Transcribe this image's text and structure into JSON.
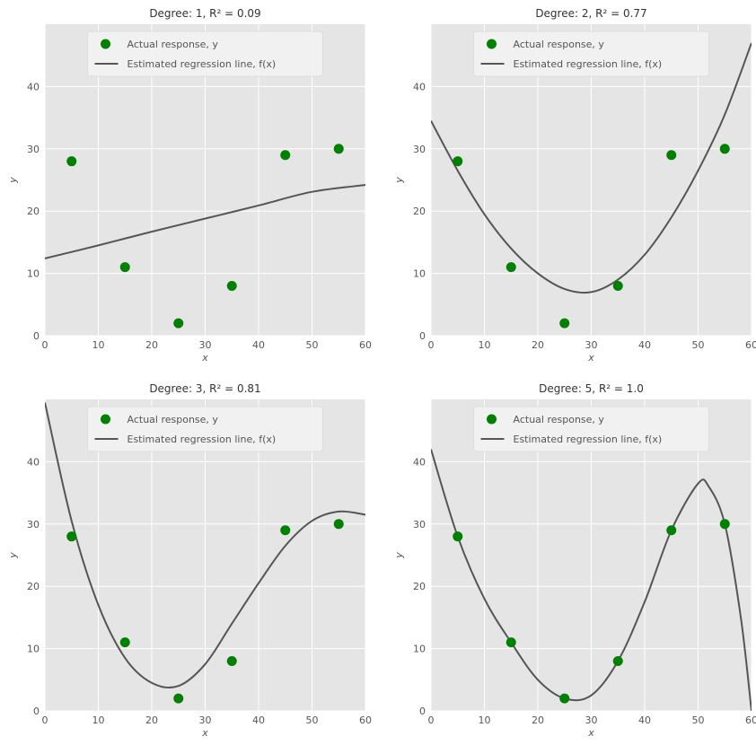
{
  "chart_data": [
    {
      "type": "scatter",
      "title": "Degree: 1, R² = 0.09",
      "xlabel": "x",
      "ylabel": "y",
      "xlim": [
        0,
        60
      ],
      "ylim": [
        0,
        50
      ],
      "xticks": [
        0,
        10,
        20,
        30,
        40,
        50,
        60
      ],
      "yticks": [
        0,
        10,
        20,
        30,
        40
      ],
      "grid": true,
      "legend_position": "top-center",
      "series": [
        {
          "name": "Actual response, y",
          "kind": "points",
          "color": "#008000",
          "x": [
            5,
            15,
            25,
            35,
            45,
            55
          ],
          "y": [
            28,
            11,
            2,
            8,
            29,
            30
          ]
        },
        {
          "name": "Estimated regression line, f(x)",
          "kind": "line",
          "color": "#555555",
          "x": [
            0,
            10,
            20,
            30,
            40,
            50,
            60
          ],
          "y": [
            12.4,
            14.5,
            16.7,
            18.8,
            20.9,
            23.1,
            24.2
          ]
        }
      ]
    },
    {
      "type": "scatter",
      "title": "Degree: 2, R² = 0.77",
      "xlabel": "x",
      "ylabel": "y",
      "xlim": [
        0,
        60
      ],
      "ylim": [
        0,
        50
      ],
      "xticks": [
        0,
        10,
        20,
        30,
        40,
        50,
        60
      ],
      "yticks": [
        0,
        10,
        20,
        30,
        40
      ],
      "grid": true,
      "legend_position": "top-center",
      "series": [
        {
          "name": "Actual response, y",
          "kind": "points",
          "color": "#008000",
          "x": [
            5,
            15,
            25,
            35,
            45,
            55
          ],
          "y": [
            28,
            11,
            2,
            8,
            29,
            30
          ]
        },
        {
          "name": "Estimated regression line, f(x)",
          "kind": "line",
          "color": "#555555",
          "x": [
            0,
            5,
            10,
            15,
            20,
            25,
            30,
            35,
            40,
            45,
            50,
            55,
            60
          ],
          "y": [
            34.5,
            26.5,
            19.5,
            14,
            10,
            7.5,
            7,
            9,
            13,
            19,
            26.5,
            35.5,
            47
          ]
        }
      ]
    },
    {
      "type": "scatter",
      "title": "Degree: 3, R² = 0.81",
      "xlabel": "x",
      "ylabel": "y",
      "xlim": [
        0,
        60
      ],
      "ylim": [
        0,
        50
      ],
      "xticks": [
        0,
        10,
        20,
        30,
        40,
        50,
        60
      ],
      "yticks": [
        0,
        10,
        20,
        30,
        40
      ],
      "grid": true,
      "legend_position": "top-center",
      "series": [
        {
          "name": "Actual response, y",
          "kind": "points",
          "color": "#008000",
          "x": [
            5,
            15,
            25,
            35,
            45,
            55
          ],
          "y": [
            28,
            11,
            2,
            8,
            29,
            30
          ]
        },
        {
          "name": "Estimated regression line, f(x)",
          "kind": "line",
          "color": "#555555",
          "x": [
            0,
            5,
            10,
            15,
            20,
            25,
            30,
            35,
            40,
            45,
            50,
            55,
            60
          ],
          "y": [
            49.5,
            30.5,
            17,
            8.5,
            4.5,
            4,
            7.5,
            14,
            20.5,
            26.5,
            30.5,
            32,
            31.5
          ]
        }
      ]
    },
    {
      "type": "scatter",
      "title": "Degree: 5, R² = 1.0",
      "xlabel": "x",
      "ylabel": "y",
      "xlim": [
        0,
        60
      ],
      "ylim": [
        0,
        50
      ],
      "xticks": [
        0,
        10,
        20,
        30,
        40,
        50,
        60
      ],
      "yticks": [
        0,
        10,
        20,
        30,
        40
      ],
      "grid": true,
      "legend_position": "top-center",
      "series": [
        {
          "name": "Actual response, y",
          "kind": "points",
          "color": "#008000",
          "x": [
            5,
            15,
            25,
            35,
            45,
            55
          ],
          "y": [
            28,
            11,
            2,
            8,
            29,
            30
          ]
        },
        {
          "name": "Estimated regression line, f(x)",
          "kind": "line",
          "color": "#555555",
          "x": [
            0,
            5,
            10,
            15,
            20,
            25,
            30,
            35,
            40,
            45,
            50,
            52,
            55,
            58,
            60
          ],
          "y": [
            42,
            28,
            18,
            11,
            5,
            2,
            2.5,
            8,
            17.5,
            29,
            36.5,
            36,
            30,
            15,
            0
          ]
        }
      ]
    }
  ]
}
